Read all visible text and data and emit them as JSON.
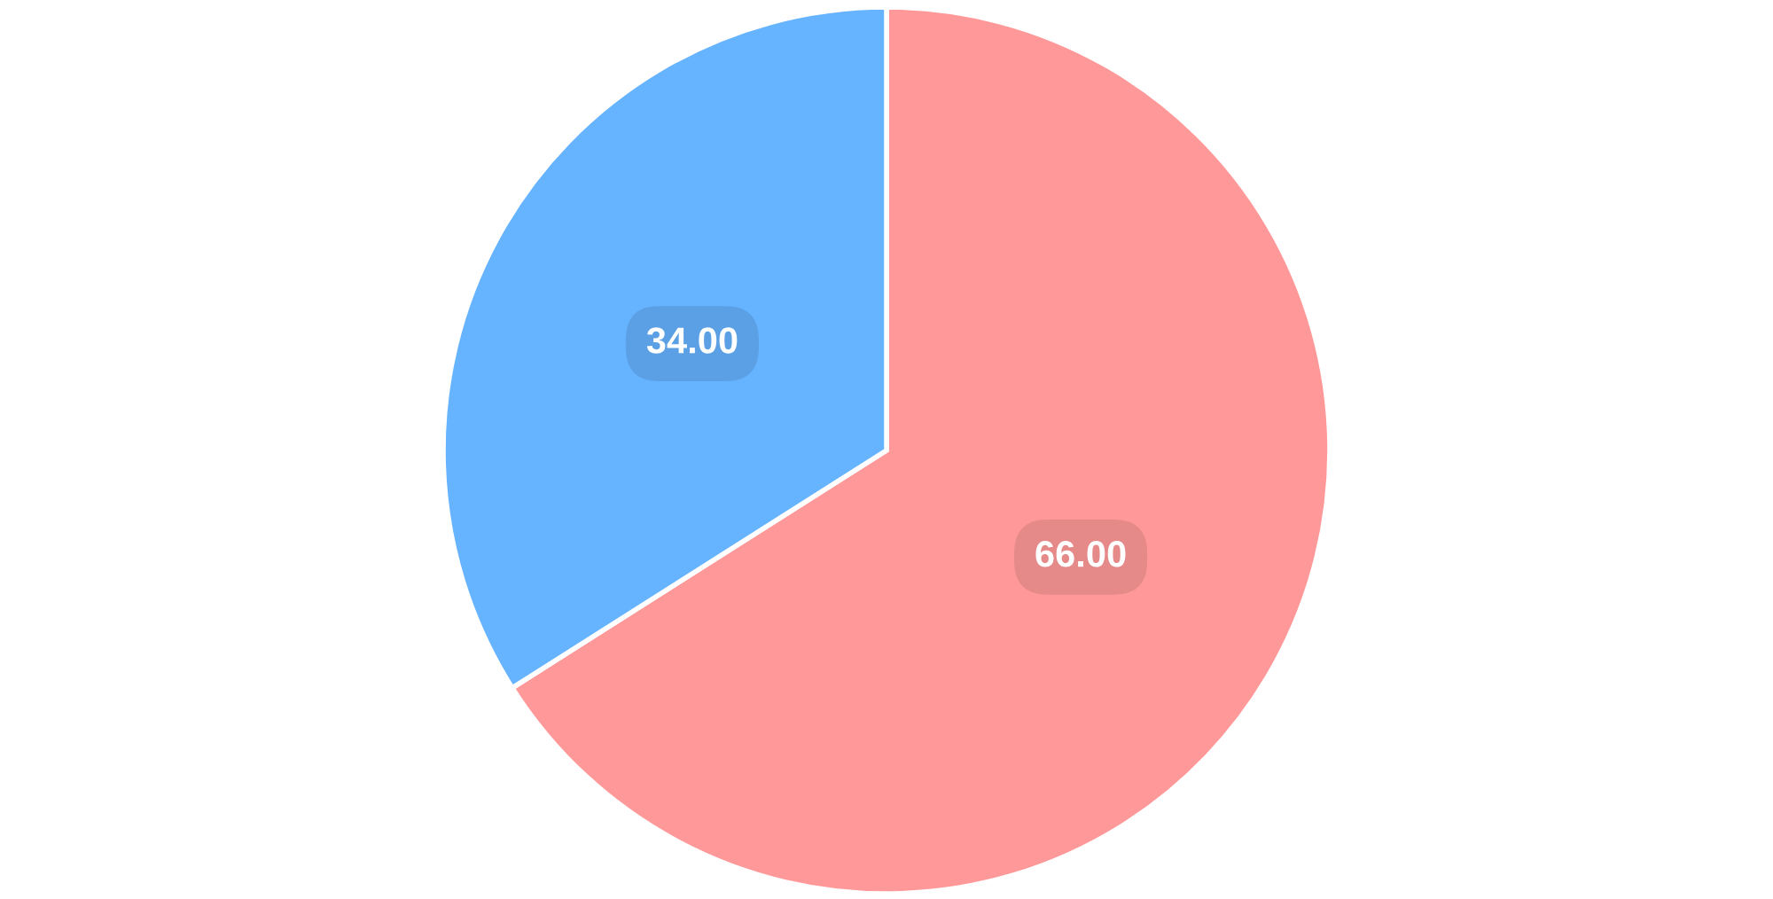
{
  "chart_data": {
    "type": "pie",
    "categories": [
      null,
      null
    ],
    "values": [
      66,
      34
    ],
    "colors": [
      "#ff9999",
      "#66b3ff"
    ],
    "value_labels": [
      "66.00",
      "34.00"
    ]
  }
}
